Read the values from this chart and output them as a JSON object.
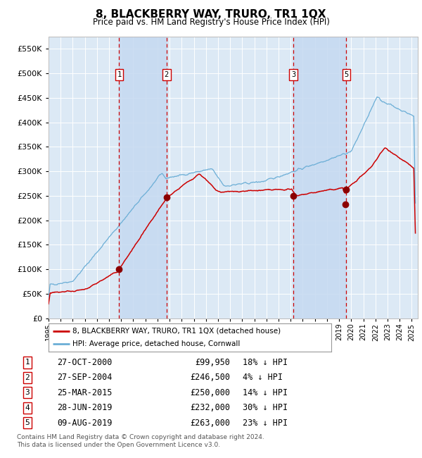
{
  "title": "8, BLACKBERRY WAY, TRURO, TR1 1QX",
  "subtitle": "Price paid vs. HM Land Registry's House Price Index (HPI)",
  "title_fontsize": 11,
  "subtitle_fontsize": 9,
  "ylim": [
    0,
    575000
  ],
  "yticks": [
    0,
    50000,
    100000,
    150000,
    200000,
    250000,
    300000,
    350000,
    400000,
    450000,
    500000,
    550000
  ],
  "xlim_start": 1995.0,
  "xlim_end": 2025.5,
  "background_color": "#ffffff",
  "plot_bg_color": "#dce9f5",
  "grid_color": "#ffffff",
  "hpi_line_color": "#6baed6",
  "price_line_color": "#cc0000",
  "sale_marker_color": "#8b0000",
  "sale_marker_size": 6,
  "vline_color": "#cc0000",
  "transactions": [
    {
      "id": 1,
      "date": "27-OCT-2000",
      "year": 2000.83,
      "price": 99950,
      "pct": "18%",
      "direction": "↓"
    },
    {
      "id": 2,
      "date": "27-SEP-2004",
      "year": 2004.75,
      "price": 246500,
      "pct": "4%",
      "direction": "↓"
    },
    {
      "id": 3,
      "date": "25-MAR-2015",
      "year": 2015.23,
      "price": 250000,
      "pct": "14%",
      "direction": "↓"
    },
    {
      "id": 4,
      "date": "28-JUN-2019",
      "year": 2019.49,
      "price": 232000,
      "pct": "30%",
      "direction": "↓"
    },
    {
      "id": 5,
      "date": "09-AUG-2019",
      "year": 2019.6,
      "price": 263000,
      "pct": "23%",
      "direction": "↓"
    }
  ],
  "vlines_shown": [
    1,
    2,
    3,
    5
  ],
  "shaded_regions": [
    {
      "x_start": 2000.83,
      "x_end": 2004.75
    },
    {
      "x_start": 2015.23,
      "x_end": 2019.6
    }
  ],
  "shade_color": "#c5d9f1",
  "footer_line1": "Contains HM Land Registry data © Crown copyright and database right 2024.",
  "footer_line2": "This data is licensed under the Open Government Licence v3.0.",
  "legend_property_label": "8, BLACKBERRY WAY, TRURO, TR1 1QX (detached house)",
  "legend_hpi_label": "HPI: Average price, detached house, Cornwall"
}
